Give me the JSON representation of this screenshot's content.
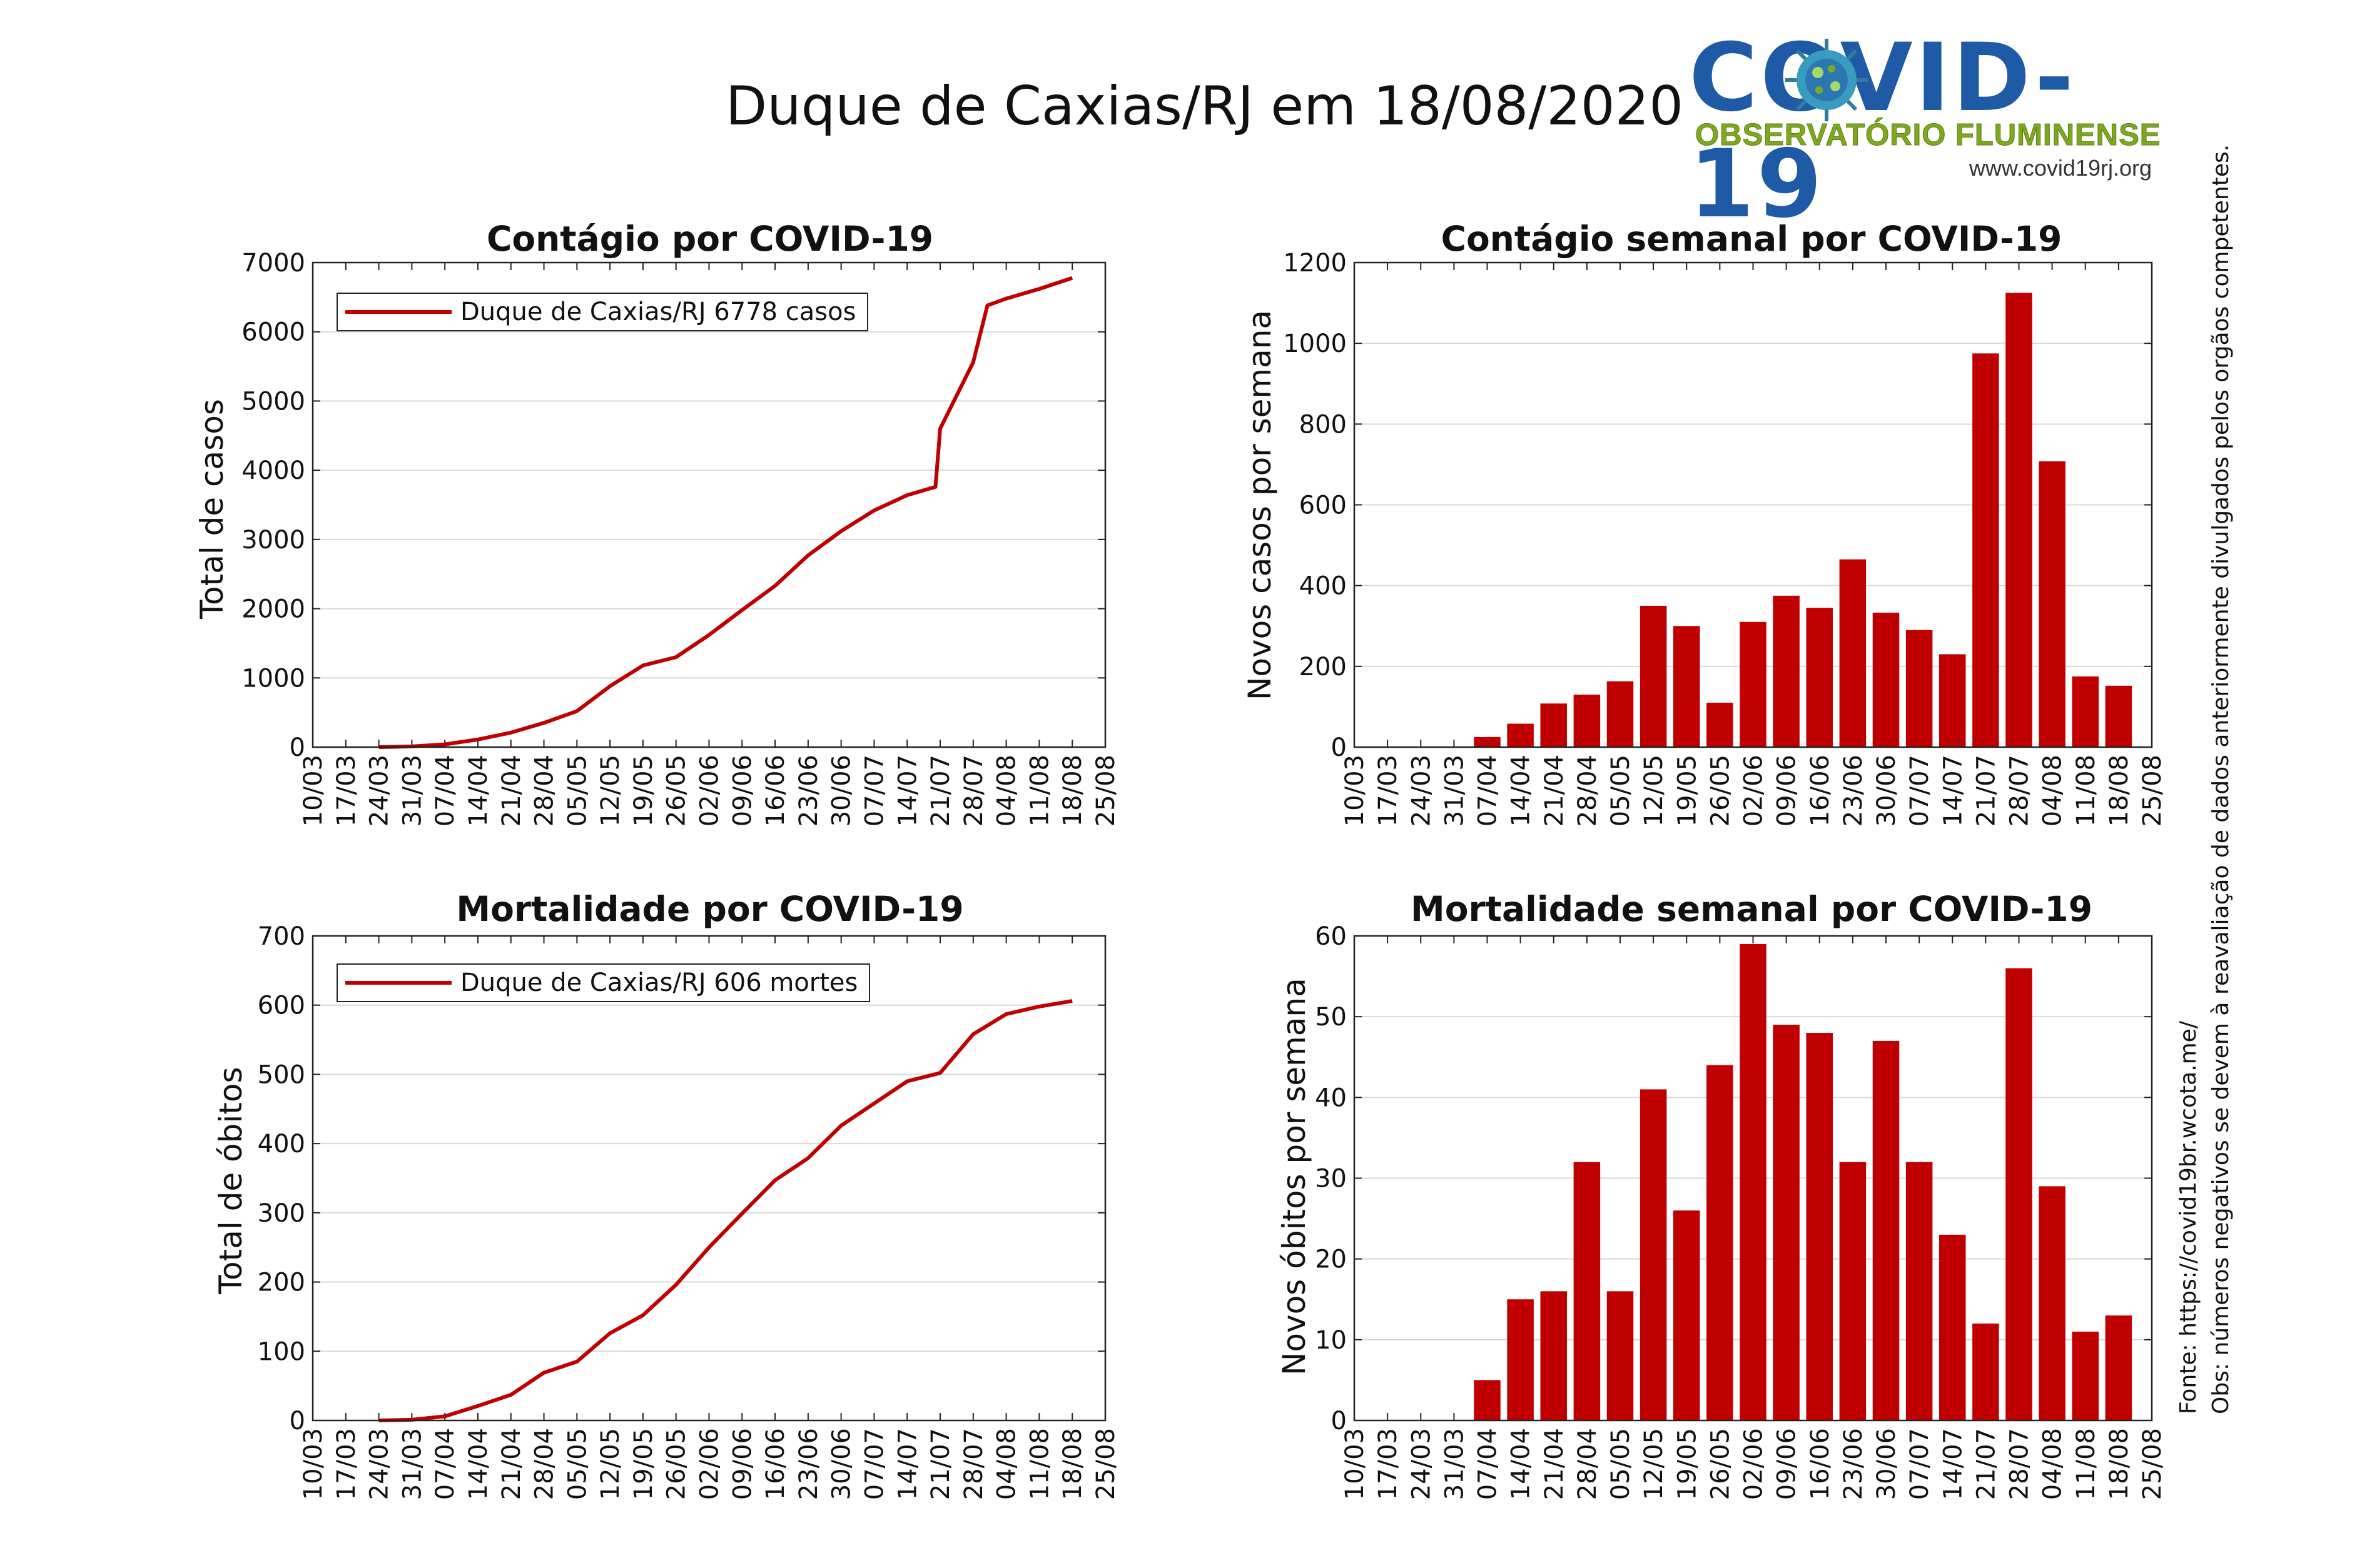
{
  "figure": {
    "title": "Duque de Caxias/RJ em 18/08/2020",
    "source_note": "Fonte: https://covid19br.wcota.me/",
    "obs_note": "Obs: números negativos se devem à reavaliação de dados anteriormente divulgados pelos orgãos competentes.",
    "logo": {
      "word": "COVID-19",
      "subtitle": "OBSERVATÓRIO FLUMINENSE",
      "url": "www.covid19rj.org"
    },
    "colors": {
      "series": "#c00000",
      "grid": "#d9d9d9",
      "logo_blue": "#1f5aa6",
      "logo_green": "#7ea820"
    }
  },
  "chart_data": [
    {
      "id": "cases-cumulative",
      "type": "line",
      "title": "Contágio por COVID-19",
      "ylabel": "Total de casos",
      "xlabel": "",
      "ylim": [
        0,
        7000
      ],
      "yticks": [
        "0",
        "1000",
        "2000",
        "3000",
        "4000",
        "5000",
        "6000",
        "7000"
      ],
      "xlim": [
        "10/03",
        "25/08"
      ],
      "xticks": [
        "10/03",
        "17/03",
        "24/03",
        "31/03",
        "07/04",
        "14/04",
        "21/04",
        "28/04",
        "05/05",
        "12/05",
        "19/05",
        "26/05",
        "02/06",
        "09/06",
        "16/06",
        "23/06",
        "30/06",
        "07/07",
        "14/07",
        "21/07",
        "28/07",
        "04/08",
        "11/08",
        "18/08",
        "25/08"
      ],
      "grid": true,
      "legend": "top-left",
      "legend_label": "Duque de Caxias/RJ  6778 casos",
      "series": [
        {
          "name": "Duque de Caxias/RJ",
          "x": [
            "24/03",
            "31/03",
            "07/04",
            "14/04",
            "21/04",
            "28/04",
            "05/05",
            "12/05",
            "19/05",
            "26/05",
            "02/06",
            "09/06",
            "16/06",
            "23/06",
            "30/06",
            "07/07",
            "14/07",
            "20/07",
            "21/07",
            "28/07",
            "31/07",
            "04/08",
            "11/08",
            "18/08"
          ],
          "values": [
            0,
            10,
            40,
            110,
            210,
            350,
            520,
            880,
            1180,
            1300,
            1620,
            1980,
            2330,
            2770,
            3120,
            3420,
            3640,
            3760,
            4600,
            5560,
            6380,
            6480,
            6620,
            6778
          ]
        }
      ]
    },
    {
      "id": "cases-weekly",
      "type": "bar",
      "title": "Contágio semanal por COVID-19",
      "ylabel": "Novos casos por semana",
      "xlabel": "",
      "ylim": [
        0,
        1200
      ],
      "yticks": [
        "0",
        "200",
        "400",
        "600",
        "800",
        "1000",
        "1200"
      ],
      "xticks": [
        "10/03",
        "17/03",
        "24/03",
        "31/03",
        "07/04",
        "14/04",
        "21/04",
        "28/04",
        "05/05",
        "12/05",
        "19/05",
        "26/05",
        "02/06",
        "09/06",
        "16/06",
        "23/06",
        "30/06",
        "07/07",
        "14/07",
        "21/07",
        "28/07",
        "04/08",
        "11/08",
        "18/08",
        "25/08"
      ],
      "grid": true,
      "categories": [
        "10/03",
        "17/03",
        "24/03",
        "31/03",
        "07/04",
        "14/04",
        "21/04",
        "28/04",
        "05/05",
        "12/05",
        "19/05",
        "26/05",
        "02/06",
        "09/06",
        "16/06",
        "23/06",
        "30/06",
        "07/07",
        "14/07",
        "21/07",
        "28/07",
        "04/08",
        "11/08",
        "18/08"
      ],
      "values": [
        0,
        0,
        0,
        0,
        25,
        58,
        108,
        130,
        163,
        350,
        300,
        110,
        310,
        375,
        345,
        465,
        333,
        290,
        230,
        975,
        1125,
        708,
        175,
        152
      ]
    },
    {
      "id": "deaths-cumulative",
      "type": "line",
      "title": "Mortalidade por COVID-19",
      "ylabel": "Total de óbitos",
      "xlabel": "",
      "ylim": [
        0,
        700
      ],
      "yticks": [
        "0",
        "100",
        "200",
        "300",
        "400",
        "500",
        "600",
        "700"
      ],
      "xlim": [
        "10/03",
        "25/08"
      ],
      "xticks": [
        "10/03",
        "17/03",
        "24/03",
        "31/03",
        "07/04",
        "14/04",
        "21/04",
        "28/04",
        "05/05",
        "12/05",
        "19/05",
        "26/05",
        "02/06",
        "09/06",
        "16/06",
        "23/06",
        "30/06",
        "07/07",
        "14/07",
        "21/07",
        "28/07",
        "04/08",
        "11/08",
        "18/08",
        "25/08"
      ],
      "grid": true,
      "legend": "top-left",
      "legend_label": "Duque de Caxias/RJ  606 mortes",
      "series": [
        {
          "name": "Duque de Caxias/RJ",
          "x": [
            "24/03",
            "31/03",
            "07/04",
            "14/04",
            "21/04",
            "28/04",
            "05/05",
            "12/05",
            "19/05",
            "26/05",
            "02/06",
            "09/06",
            "16/06",
            "23/06",
            "30/06",
            "07/07",
            "14/07",
            "21/07",
            "28/07",
            "04/08",
            "11/08",
            "18/08"
          ],
          "values": [
            0,
            1,
            6,
            21,
            37,
            69,
            85,
            126,
            152,
            196,
            250,
            299,
            347,
            379,
            426,
            458,
            490,
            502,
            558,
            587,
            598,
            606
          ]
        }
      ]
    },
    {
      "id": "deaths-weekly",
      "type": "bar",
      "title": "Mortalidade semanal por COVID-19",
      "ylabel": "Novos óbitos por semana",
      "xlabel": "",
      "ylim": [
        0,
        60
      ],
      "yticks": [
        "0",
        "10",
        "20",
        "30",
        "40",
        "50",
        "60"
      ],
      "xticks": [
        "10/03",
        "17/03",
        "24/03",
        "31/03",
        "07/04",
        "14/04",
        "21/04",
        "28/04",
        "05/05",
        "12/05",
        "19/05",
        "26/05",
        "02/06",
        "09/06",
        "16/06",
        "23/06",
        "30/06",
        "07/07",
        "14/07",
        "21/07",
        "28/07",
        "04/08",
        "11/08",
        "18/08",
        "25/08"
      ],
      "grid": true,
      "categories": [
        "10/03",
        "17/03",
        "24/03",
        "31/03",
        "07/04",
        "14/04",
        "21/04",
        "28/04",
        "05/05",
        "12/05",
        "19/05",
        "26/05",
        "02/06",
        "09/06",
        "16/06",
        "23/06",
        "30/06",
        "07/07",
        "14/07",
        "21/07",
        "28/07",
        "04/08",
        "11/08",
        "18/08"
      ],
      "values": [
        0,
        0,
        0,
        0,
        5,
        15,
        16,
        32,
        16,
        41,
        26,
        44,
        59,
        49,
        48,
        32,
        47,
        32,
        23,
        12,
        56,
        29,
        11,
        13
      ]
    }
  ]
}
